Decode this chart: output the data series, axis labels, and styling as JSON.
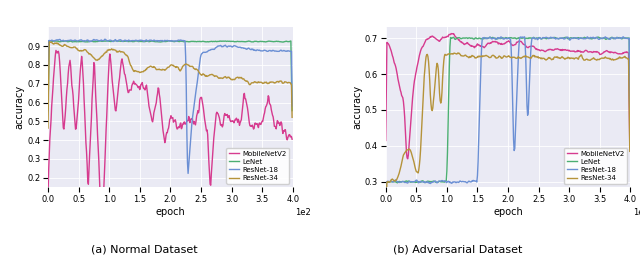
{
  "fig_width": 6.4,
  "fig_height": 2.6,
  "subplot_bg": "#eaeaf4",
  "title_a": "(a) Normal Dataset",
  "title_b": "(b) Adversarial Dataset",
  "xlabel": "epoch",
  "ylabel": "accuracy",
  "colors": {
    "MobileNetV2": "#d63b8f",
    "LeNet": "#4caf72",
    "ResNet-18": "#6b8fd4",
    "ResNet-34": "#b5933a"
  },
  "legend_labels": [
    "MobileNetV2",
    "LeNet",
    "ResNet-18",
    "ResNet-34"
  ],
  "xlim": [
    0,
    400
  ],
  "xticks": [
    0,
    50,
    100,
    150,
    200,
    250,
    300,
    350,
    400
  ],
  "xticklabels": [
    "0.0",
    "0.5",
    "1.0",
    "1.5",
    "2.0",
    "2.5",
    "3.0",
    "3.5",
    "4.0"
  ],
  "ylim_a": [
    0.15,
    1.0
  ],
  "yticks_a": [
    0.2,
    0.3,
    0.4,
    0.5,
    0.6,
    0.7,
    0.8,
    0.9
  ],
  "ylim_b": [
    0.285,
    0.73
  ],
  "yticks_b": [
    0.3,
    0.4,
    0.5,
    0.6,
    0.7
  ]
}
